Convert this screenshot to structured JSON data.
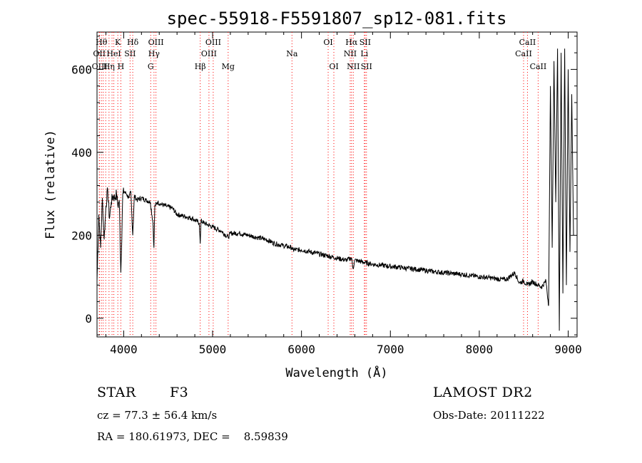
{
  "chart_data": {
    "type": "line",
    "title": "spec-55918-F5591807_sp12-081.fits",
    "xlabel": "Wavelength (Å)",
    "ylabel": "Flux (relative)",
    "xlim": [
      3700,
      9100
    ],
    "ylim": [
      -45,
      690
    ],
    "xticks": [
      4000,
      5000,
      6000,
      7000,
      8000,
      9000
    ],
    "yticks": [
      0,
      200,
      400,
      600
    ],
    "grid": false,
    "line_color": "#000000",
    "marker_color": "#ff0000",
    "series": [
      {
        "values_x": [
          3700,
          3720,
          3740,
          3760,
          3780,
          3800,
          3820,
          3840,
          3860,
          3880,
          3900,
          3920,
          3935,
          3950,
          3968,
          3990,
          4010,
          4030,
          4060,
          4080,
          4102,
          4120,
          4150,
          4200,
          4250,
          4300,
          4330,
          4340,
          4350,
          4380,
          4420,
          4480,
          4550,
          4600,
          4700,
          4780,
          4850,
          4861,
          4870,
          4900,
          4950,
          5000,
          5100,
          5175,
          5200,
          5300,
          5400,
          5500,
          5600,
          5700,
          5800,
          5890,
          5900,
          6000,
          6100,
          6200,
          6300,
          6400,
          6500,
          6563,
          6580,
          6600,
          6700,
          6800,
          6900,
          7000,
          7100,
          7200,
          7300,
          7400,
          7500,
          7600,
          7700,
          7800,
          7900,
          8000,
          8100,
          8200,
          8300,
          8400,
          8450,
          8498,
          8542,
          8600,
          8662,
          8700,
          8750,
          8780,
          8800,
          8820,
          8840,
          8860,
          8880,
          8900,
          8920,
          8940,
          8960,
          8980,
          9000,
          9020,
          9040,
          9060
        ],
        "values_y": [
          90,
          250,
          170,
          290,
          190,
          270,
          310,
          240,
          280,
          295,
          290,
          300,
          270,
          285,
          110,
          300,
          305,
          300,
          290,
          305,
          200,
          295,
          285,
          290,
          285,
          280,
          230,
          170,
          270,
          280,
          275,
          270,
          265,
          250,
          245,
          240,
          230,
          180,
          235,
          230,
          225,
          220,
          210,
          195,
          205,
          205,
          200,
          195,
          190,
          180,
          175,
          170,
          165,
          165,
          160,
          155,
          150,
          145,
          140,
          145,
          120,
          140,
          135,
          130,
          128,
          125,
          123,
          120,
          118,
          115,
          112,
          110,
          108,
          106,
          103,
          100,
          98,
          95,
          93,
          110,
          85,
          90,
          80,
          88,
          80,
          75,
          90,
          30,
          560,
          170,
          620,
          280,
          650,
          -30,
          640,
          60,
          650,
          80,
          600,
          160,
          540,
          200
        ]
      }
    ],
    "line_markers": [
      {
        "wl": 3726,
        "label": "OII",
        "row": 2
      },
      {
        "wl": 3729,
        "label": "OIII",
        "row": 3
      },
      {
        "wl": 3750,
        "label": "Hθ",
        "row": 1
      },
      {
        "wl": 3770,
        "label": "",
        "row": 0
      },
      {
        "wl": 3798,
        "label": "",
        "row": 0
      },
      {
        "wl": 3835,
        "label": "Hη",
        "row": 3
      },
      {
        "wl": 3869,
        "label": "",
        "row": 0
      },
      {
        "wl": 3889,
        "label": "HeI",
        "row": 2
      },
      {
        "wl": 3934,
        "label": "K",
        "row": 1
      },
      {
        "wl": 3968,
        "label": "H",
        "row": 3
      },
      {
        "wl": 4072,
        "label": "SII",
        "row": 2
      },
      {
        "wl": 4102,
        "label": "Hδ",
        "row": 1
      },
      {
        "wl": 4304,
        "label": "G",
        "row": 3
      },
      {
        "wl": 4341,
        "label": "Hγ",
        "row": 2
      },
      {
        "wl": 4363,
        "label": "OIII",
        "row": 1
      },
      {
        "wl": 4861,
        "label": "Hβ",
        "row": 3
      },
      {
        "wl": 4959,
        "label": "OIII",
        "row": 2
      },
      {
        "wl": 5007,
        "label": "OIII",
        "row": 1
      },
      {
        "wl": 5175,
        "label": "Mg",
        "row": 3
      },
      {
        "wl": 5893,
        "label": "Na",
        "row": 2
      },
      {
        "wl": 6300,
        "label": "OI",
        "row": 1
      },
      {
        "wl": 6364,
        "label": "OI",
        "row": 3
      },
      {
        "wl": 6548,
        "label": "NII",
        "row": 2
      },
      {
        "wl": 6563,
        "label": "Hα",
        "row": 1
      },
      {
        "wl": 6583,
        "label": "NII",
        "row": 3
      },
      {
        "wl": 6707,
        "label": "Li",
        "row": 2
      },
      {
        "wl": 6716,
        "label": "SII",
        "row": 1
      },
      {
        "wl": 6731,
        "label": "SII",
        "row": 3
      },
      {
        "wl": 8498,
        "label": "CaII",
        "row": 2
      },
      {
        "wl": 8542,
        "label": "CaII",
        "row": 1
      },
      {
        "wl": 8662,
        "label": "CaII",
        "row": 3
      }
    ]
  },
  "info": {
    "object_type": "STAR",
    "subclass": "F3",
    "survey": "LAMOST DR2",
    "redshift": "cz = 77.3 ± 56.4 km/s",
    "obs_date": "Obs-Date: 20111222",
    "coords": "RA = 180.61973, DEC =    8.59839"
  }
}
